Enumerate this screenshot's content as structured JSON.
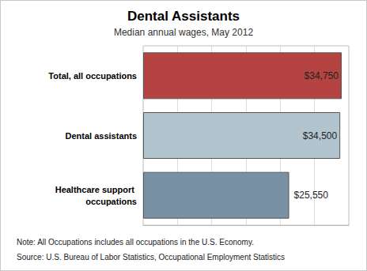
{
  "chart_data": {
    "type": "bar",
    "title": "Dental Assistants",
    "subtitle": "Median annual wages, May 2012",
    "categories": [
      "Total, all occupations",
      "Dental assistants",
      "Healthcare support occupations"
    ],
    "values": [
      34750,
      34500,
      25550
    ],
    "value_labels": [
      "$34,750",
      "$34,500",
      "$25,550"
    ],
    "colors": [
      "#b54341",
      "#b2c5cf",
      "#7891a4"
    ],
    "orientation": "horizontal",
    "data_labels": true,
    "tick_labels": "y",
    "xlim": [
      0,
      36000
    ],
    "xticks": [
      0,
      6000,
      12000,
      18000,
      24000,
      30000,
      36000
    ],
    "grid": true,
    "annotations": [
      "Note: All Occupations includes all occupations in the U.S. Economy.",
      "Source: U.S. Bureau of Labor Statistics, Occupational Employment Statistics"
    ]
  }
}
